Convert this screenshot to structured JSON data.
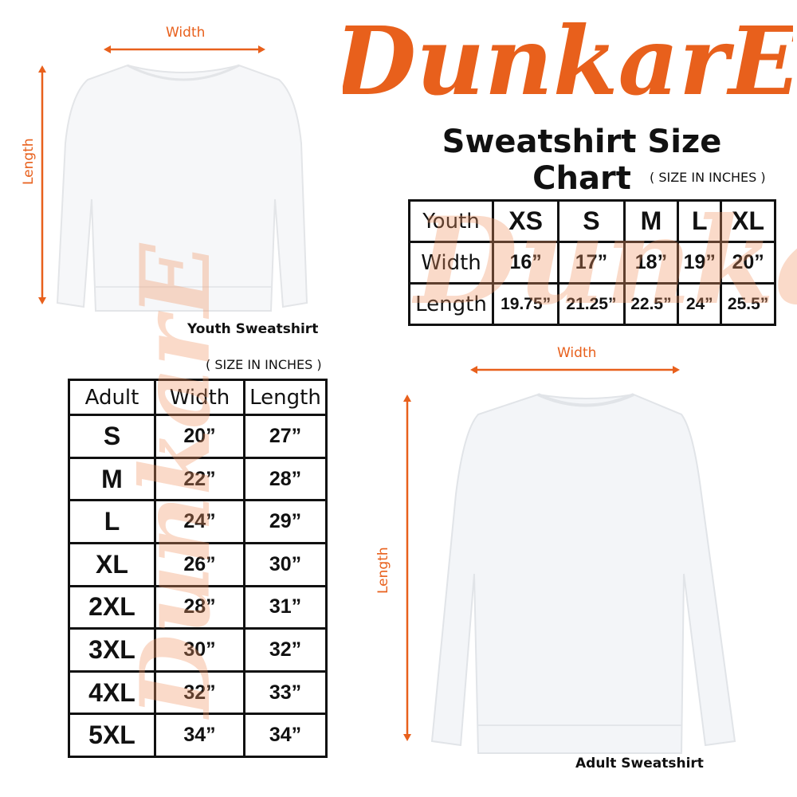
{
  "brand": {
    "logo_text": "DunkarE",
    "color": "#e8601c"
  },
  "title": "Sweatshirt Size Chart",
  "youth": {
    "unit_note": "( SIZE IN INCHES )",
    "caption": "Youth Sweatshirt",
    "width_label": "Width",
    "length_label": "Length",
    "table": {
      "header": [
        "Youth",
        "XS",
        "S",
        "M",
        "L",
        "XL"
      ],
      "rows": [
        [
          "Width",
          "16”",
          "17”",
          "18”",
          "19”",
          "20”"
        ],
        [
          "Length",
          "19.75”",
          "21.25”",
          "22.5”",
          "24”",
          "25.5”"
        ]
      ]
    }
  },
  "adult": {
    "unit_note": "( SIZE IN INCHES )",
    "caption": "Adult Sweatshirt",
    "width_label": "Width",
    "length_label": "Length",
    "table": {
      "header": [
        "Adult",
        "Width",
        "Length"
      ],
      "rows": [
        [
          "S",
          "20”",
          "27”"
        ],
        [
          "M",
          "22”",
          "28”"
        ],
        [
          "L",
          "24”",
          "29”"
        ],
        [
          "XL",
          "26”",
          "30”"
        ],
        [
          "2XL",
          "28”",
          "31”"
        ],
        [
          "3XL",
          "30”",
          "32”"
        ],
        [
          "4XL",
          "32”",
          "33”"
        ],
        [
          "5XL",
          "34”",
          "34”"
        ]
      ]
    }
  }
}
